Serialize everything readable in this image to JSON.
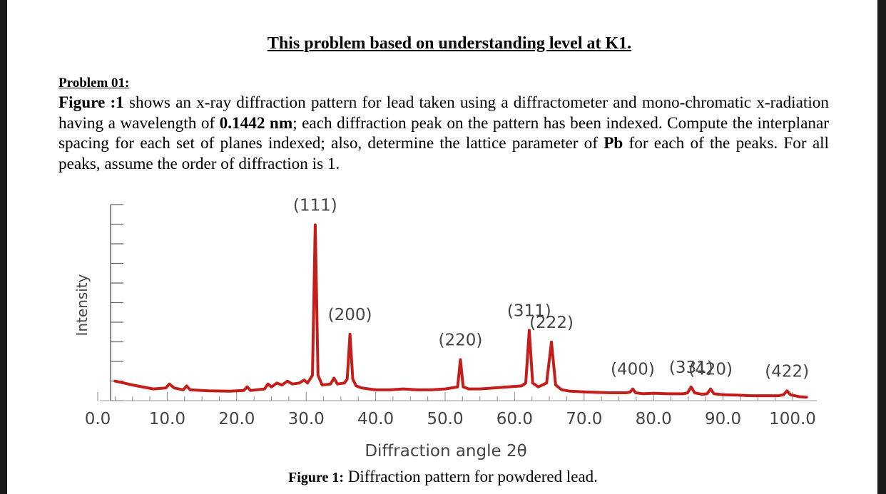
{
  "document": {
    "heading": "This problem based on understanding level at K1.",
    "problem_label": "Problem 01:",
    "paragraph": {
      "fig_ref": "Figure :1",
      "t1": " shows an x-ray diffraction pattern for lead taken using a diffractometer and mono-chromatic x-radiation having a wavelength of ",
      "wavelength": "0.1442 nm",
      "t2": "; each diffraction peak on the pattern has been indexed. Compute the interplanar spacing for each set of planes indexed; also, determine the lattice parameter of ",
      "element": "Pb",
      "t3": " for each of the peaks. For all peaks, assume the order of diffraction is 1."
    },
    "caption_label": "Figure 1:",
    "caption_text": " Diffraction pattern for powdered lead."
  },
  "chart_data": {
    "type": "line",
    "xlabel": "Diffraction angle 2θ",
    "ylabel": "Intensity",
    "xlim": [
      0,
      102
    ],
    "ylim": [
      0,
      100
    ],
    "x_ticks": [
      "0.0",
      "10.0",
      "20.0",
      "30.0",
      "40.0",
      "50.0",
      "60.0",
      "70.0",
      "80.0",
      "90.0",
      "100.0"
    ],
    "line_color": "#c41e1a",
    "peaks": [
      {
        "label": "(111)",
        "x": 31.3,
        "y": 90
      },
      {
        "label": "(200)",
        "x": 36.3,
        "y": 34
      },
      {
        "label": "(220)",
        "x": 52.2,
        "y": 21
      },
      {
        "label": "(311)",
        "x": 62.1,
        "y": 36
      },
      {
        "label": "(222)",
        "x": 65.3,
        "y": 30
      },
      {
        "label": "(400)",
        "x": 77.0,
        "y": 6
      },
      {
        "label": "(331)",
        "x": 85.4,
        "y": 7
      },
      {
        "label": "(420)",
        "x": 88.2,
        "y": 6
      },
      {
        "label": "(422)",
        "x": 99.2,
        "y": 5
      }
    ],
    "series": [
      {
        "x": [
          2.5,
          5,
          8,
          9.8,
          10.3,
          11,
          12.3,
          12.8,
          13.3,
          16,
          19,
          21,
          21.5,
          22,
          24,
          24.5,
          25,
          25.8,
          26.5,
          27.3,
          28,
          29,
          29.7,
          30.2,
          30.9,
          31.3,
          31.7,
          32.3,
          33.5,
          34.0,
          34.5,
          35.5,
          35.9,
          36.3,
          36.7,
          37.2,
          38,
          39,
          40,
          42,
          44,
          46,
          48,
          50,
          51.8,
          52.2,
          52.6,
          53.4,
          55,
          57,
          59,
          61,
          61.6,
          62.1,
          62.6,
          63.4,
          64.6,
          65.3,
          65.9,
          66.8,
          68,
          70,
          72,
          74,
          76,
          76.6,
          77.0,
          77.4,
          78.5,
          80,
          82,
          84.3,
          84.9,
          85.4,
          85.9,
          87,
          87.7,
          88.2,
          88.7,
          90,
          92,
          94,
          96,
          98,
          98.7,
          99.2,
          99.7,
          101,
          102
        ],
        "y": [
          10,
          8,
          6,
          6.5,
          8.5,
          6.5,
          5.5,
          7.5,
          5.5,
          5,
          4.8,
          5.2,
          7,
          5.2,
          6,
          8.5,
          7,
          9,
          8,
          10,
          8.5,
          9,
          10.5,
          9,
          13,
          90,
          13,
          8,
          8.5,
          11.5,
          8.5,
          9,
          11,
          34,
          11,
          7.5,
          6.5,
          6,
          5.5,
          5.5,
          6,
          5.5,
          5.5,
          6,
          7,
          21,
          7,
          6,
          6,
          6.5,
          7,
          7.5,
          9,
          36,
          9,
          7,
          9,
          30,
          8,
          5.5,
          4.8,
          4.5,
          4.2,
          4,
          4,
          4.3,
          6,
          4,
          3.5,
          3.8,
          3.5,
          3.5,
          4,
          7,
          4,
          3.2,
          3.5,
          6,
          3.5,
          3,
          2.8,
          2.5,
          2.5,
          2.5,
          3,
          5,
          3,
          2,
          1.8
        ]
      }
    ]
  }
}
